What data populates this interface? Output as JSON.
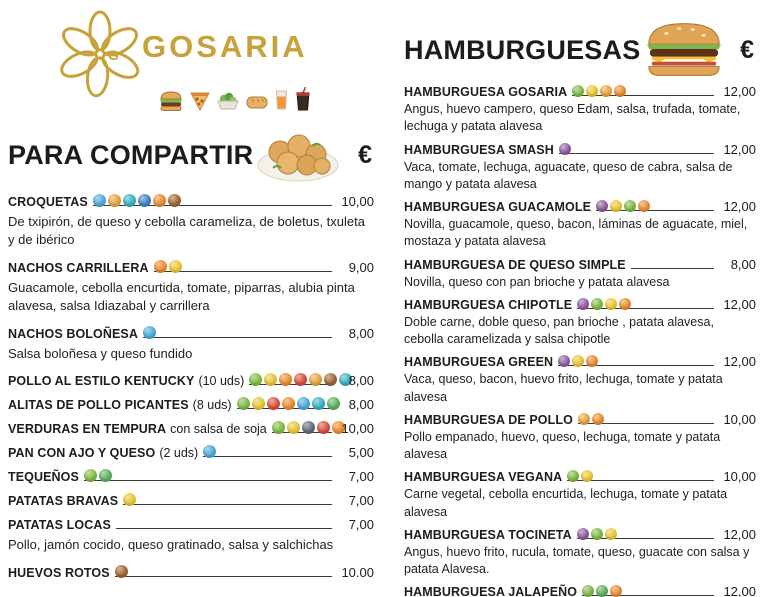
{
  "brand": {
    "name": "GOSARIA",
    "logo_letter": "G",
    "accent_color": "#C7A239",
    "food_icons": [
      "burger-icon",
      "pizza-icon",
      "salad-icon",
      "bread-icon",
      "juice-icon",
      "soda-icon"
    ],
    "header_art": {
      "share": "croquettes-plate",
      "burgers": "burger"
    }
  },
  "sections": {
    "share": {
      "title": "PARA COMPARTIR",
      "currency": "€",
      "items": [
        {
          "name": "CROQUETAS",
          "price": "10,00",
          "desc": "De txipirón, de queso y cebolla carameliza, de boletus, txuleta y de ibérico",
          "allergens": [
            {
              "name": "crustaceans",
              "color": "#49A8D6"
            },
            {
              "name": "gluten",
              "color": "#E5A13C"
            },
            {
              "name": "molluscs",
              "color": "#35AFC0"
            },
            {
              "name": "fish",
              "color": "#3E7FC1"
            },
            {
              "name": "egg",
              "color": "#E98A2B"
            },
            {
              "name": "nuts",
              "color": "#9C6430"
            }
          ]
        },
        {
          "name": "NACHOS CARRILLERA",
          "price": "9,00",
          "desc": "Guacamole, cebolla encurtida, tomate, piparras, alubia pinta alavesa, salsa Idiazabal y carrillera",
          "allergens": [
            {
              "name": "egg",
              "color": "#E98A2B"
            },
            {
              "name": "mustard",
              "color": "#E7C531"
            }
          ]
        },
        {
          "name": "NACHOS BOLOÑESA",
          "price": "8,00",
          "desc": "Salsa boloñesa y queso fundido",
          "allergens": [
            {
              "name": "fish",
              "color": "#49A8D6"
            }
          ]
        },
        {
          "name": "POLLO AL ESTILO KENTUCKY",
          "suffix": "(10 uds)",
          "price": "8,00",
          "allergens": [
            {
              "name": "soy",
              "color": "#7DB843"
            },
            {
              "name": "mustard",
              "color": "#E7C531"
            },
            {
              "name": "egg",
              "color": "#E98A2B"
            },
            {
              "name": "sesame",
              "color": "#D84B3A"
            },
            {
              "name": "gluten",
              "color": "#E5A13C"
            },
            {
              "name": "nuts",
              "color": "#9C6430"
            },
            {
              "name": "molluscs",
              "color": "#35AFC0"
            }
          ]
        },
        {
          "name": "ALITAS DE POLLO PICANTES",
          "suffix": "(8 uds)",
          "price": "8,00",
          "allergens": [
            {
              "name": "soy",
              "color": "#7DB843"
            },
            {
              "name": "mustard",
              "color": "#E7C531"
            },
            {
              "name": "sesame",
              "color": "#D84B3A"
            },
            {
              "name": "egg",
              "color": "#E98A2B"
            },
            {
              "name": "fish",
              "color": "#49A8D6"
            },
            {
              "name": "molluscs",
              "color": "#35AFC0"
            },
            {
              "name": "celery",
              "color": "#5BAE5B"
            }
          ]
        },
        {
          "name": "VERDURAS EN TEMPURA",
          "suffix": "con salsa de soja",
          "price": "10,00",
          "allergens": [
            {
              "name": "soy",
              "color": "#7DB843"
            },
            {
              "name": "mustard",
              "color": "#E7C531"
            },
            {
              "name": "sulphites",
              "color": "#5E6A72"
            },
            {
              "name": "sesame",
              "color": "#D84B3A"
            },
            {
              "name": "gluten",
              "color": "#E98A2B"
            }
          ]
        },
        {
          "name": "PAN CON AJO Y QUESO",
          "suffix": "(2 uds)",
          "price": "5,00",
          "allergens": [
            {
              "name": "milk",
              "color": "#49A8D6"
            }
          ]
        },
        {
          "name": "TEQUEÑOS",
          "price": "7,00",
          "allergens": [
            {
              "name": "soy",
              "color": "#7DB843"
            },
            {
              "name": "celery",
              "color": "#5BAE5B"
            }
          ]
        },
        {
          "name": "PATATAS BRAVAS",
          "price": "7,00",
          "allergens": [
            {
              "name": "mustard",
              "color": "#E7C531"
            }
          ]
        },
        {
          "name": "PATATAS LOCAS",
          "price": "7,00",
          "desc": "Pollo, jamón cocido, queso gratinado, salsa y salchichas",
          "allergens": []
        },
        {
          "name": "HUEVOS ROTOS",
          "price": "10.00",
          "allergens": [
            {
              "name": "nuts",
              "color": "#9C6430"
            }
          ]
        }
      ]
    },
    "burgers": {
      "title": "HAMBURGUESAS",
      "currency": "€",
      "items": [
        {
          "name": "HAMBURGUESA GOSARIA",
          "price": "12,00",
          "desc": "Angus, huevo campero, queso Edam, salsa, trufada, tomate, lechuga y patata alavesa",
          "allergens": [
            {
              "name": "soy",
              "color": "#7DB843"
            },
            {
              "name": "mustard",
              "color": "#E7C531"
            },
            {
              "name": "egg",
              "color": "#E9A13C"
            },
            {
              "name": "gluten",
              "color": "#E98A2B"
            }
          ]
        },
        {
          "name": "HAMBURGUESA SMASH",
          "price": "12,00",
          "desc": "Vaca, tomate, lechuga, aguacate, queso de cabra, salsa de mango y patata alavesa",
          "allergens": [
            {
              "name": "milk",
              "color": "#8E5A9E"
            }
          ]
        },
        {
          "name": "HAMBURGUESA GUACAMOLE",
          "price": "12,00",
          "desc": "Novilla, guacamole, queso, bacon, láminas de aguacate, miel, mostaza y patata alavesa",
          "allergens": [
            {
              "name": "milk",
              "color": "#8E5A9E"
            },
            {
              "name": "mustard",
              "color": "#E7C531"
            },
            {
              "name": "soy",
              "color": "#7DB843"
            },
            {
              "name": "gluten",
              "color": "#E98A2B"
            }
          ]
        },
        {
          "name": "HAMBURGUESA DE QUESO SIMPLE",
          "price": "8,00",
          "desc": "Novilla, queso con pan brioche y patata alavesa",
          "allergens": []
        },
        {
          "name": "HAMBURGUESA CHIPOTLE",
          "price": "12,00",
          "desc": "Doble carne, doble queso, pan brioche , patata alavesa, cebolla caramelizada y salsa chipotle",
          "allergens": [
            {
              "name": "milk",
              "color": "#8E5A9E"
            },
            {
              "name": "soy",
              "color": "#7DB843"
            },
            {
              "name": "mustard",
              "color": "#E7C531"
            },
            {
              "name": "gluten",
              "color": "#E98A2B"
            }
          ]
        },
        {
          "name": "HAMBURGUESA GREEN",
          "price": "12,00",
          "desc": "Vaca, queso, bacon, huevo frito, lechuga, tomate y patata alavesa",
          "allergens": [
            {
              "name": "milk",
              "color": "#8E5A9E"
            },
            {
              "name": "mustard",
              "color": "#E7C531"
            },
            {
              "name": "gluten",
              "color": "#E98A2B"
            }
          ]
        },
        {
          "name": "HAMBURGUESA DE POLLO",
          "price": "10,00",
          "desc": "Pollo empanado, huevo, queso, lechuga, tomate y patata alavesa",
          "allergens": [
            {
              "name": "egg",
              "color": "#E9A13C"
            },
            {
              "name": "gluten",
              "color": "#E98A2B"
            }
          ]
        },
        {
          "name": "HAMBURGUESA VEGANA",
          "price": "10,00",
          "desc": "Carne vegetal, cebolla encurtida, lechuga, tomate y patata alavesa",
          "allergens": [
            {
              "name": "soy",
              "color": "#7DB843"
            },
            {
              "name": "mustard",
              "color": "#E7C531"
            }
          ]
        },
        {
          "name": "HAMBURGUESA TOCINETA",
          "price": "12,00",
          "desc": "Angus, huevo frito, rucula, tomate, queso, guacate con salsa y patata Alavesa.",
          "allergens": [
            {
              "name": "milk",
              "color": "#8E5A9E"
            },
            {
              "name": "soy",
              "color": "#7DB843"
            },
            {
              "name": "mustard",
              "color": "#E7C531"
            }
          ]
        },
        {
          "name": "HAMBURGUESA JALAPEÑO",
          "price": "12,00",
          "allergens": [
            {
              "name": "soy",
              "color": "#7DB843"
            },
            {
              "name": "celery",
              "color": "#5BAE5B"
            },
            {
              "name": "egg",
              "color": "#E98A2B"
            }
          ]
        }
      ]
    }
  }
}
